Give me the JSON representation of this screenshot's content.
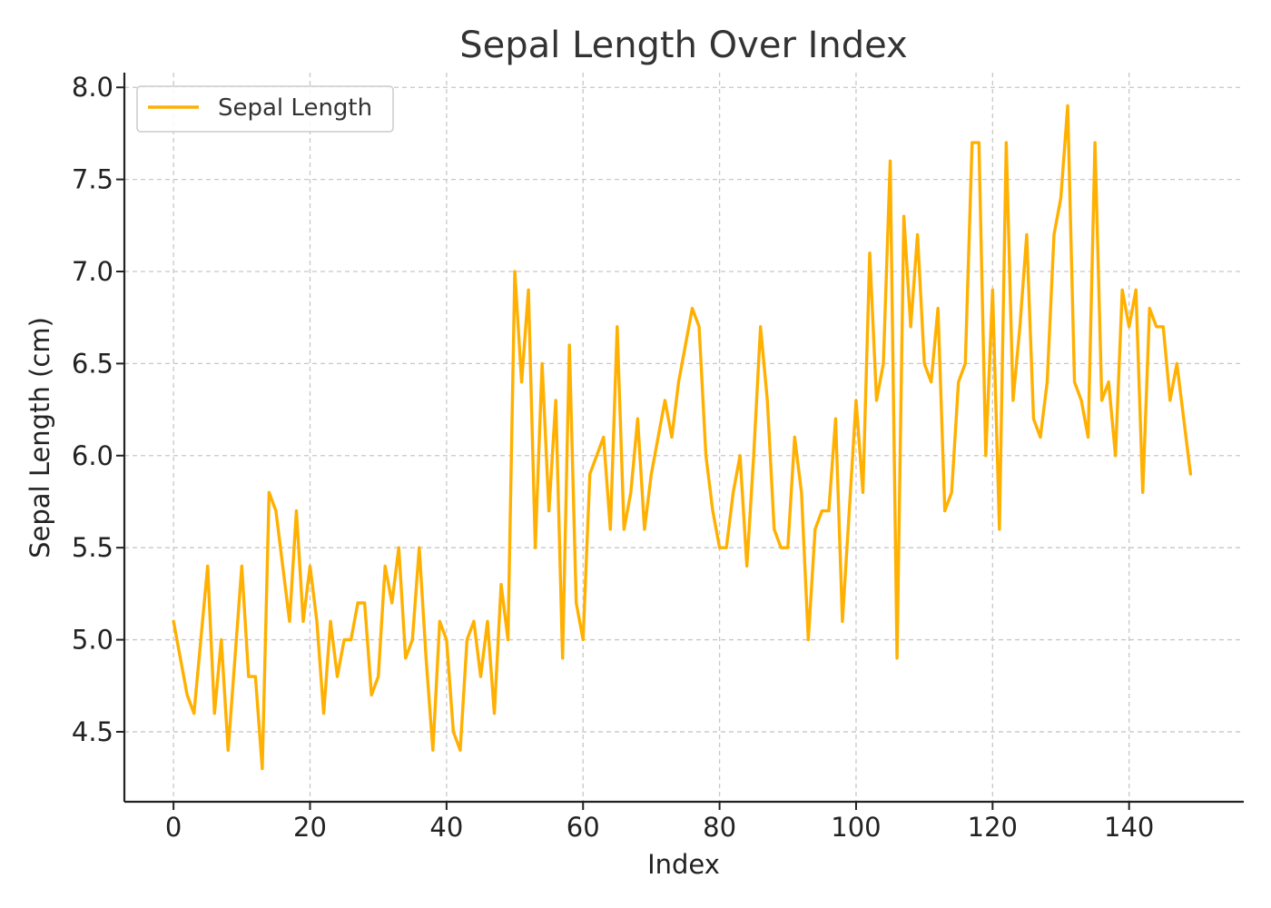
{
  "chart_data": {
    "type": "line",
    "title": "Sepal Length Over Index",
    "xlabel": "Index",
    "ylabel": "Sepal Length (cm)",
    "xlim": [
      -7.2,
      156.8
    ],
    "ylim": [
      4.12,
      8.08
    ],
    "xticks": [
      0,
      20,
      40,
      60,
      80,
      100,
      120,
      140
    ],
    "yticks": [
      4.5,
      5.0,
      5.5,
      6.0,
      6.5,
      7.0,
      7.5,
      8.0
    ],
    "grid": true,
    "legend_position": "top-left",
    "series": [
      {
        "name": "Sepal Length",
        "color": "#FFB000",
        "x_start": 0,
        "x_step": 1,
        "values": [
          5.1,
          4.9,
          4.7,
          4.6,
          5.0,
          5.4,
          4.6,
          5.0,
          4.4,
          4.9,
          5.4,
          4.8,
          4.8,
          4.3,
          5.8,
          5.7,
          5.4,
          5.1,
          5.7,
          5.1,
          5.4,
          5.1,
          4.6,
          5.1,
          4.8,
          5.0,
          5.0,
          5.2,
          5.2,
          4.7,
          4.8,
          5.4,
          5.2,
          5.5,
          4.9,
          5.0,
          5.5,
          4.9,
          4.4,
          5.1,
          5.0,
          4.5,
          4.4,
          5.0,
          5.1,
          4.8,
          5.1,
          4.6,
          5.3,
          5.0,
          7.0,
          6.4,
          6.9,
          5.5,
          6.5,
          5.7,
          6.3,
          4.9,
          6.6,
          5.2,
          5.0,
          5.9,
          6.0,
          6.1,
          5.6,
          6.7,
          5.6,
          5.8,
          6.2,
          5.6,
          5.9,
          6.1,
          6.3,
          6.1,
          6.4,
          6.6,
          6.8,
          6.7,
          6.0,
          5.7,
          5.5,
          5.5,
          5.8,
          6.0,
          5.4,
          6.0,
          6.7,
          6.3,
          5.6,
          5.5,
          5.5,
          6.1,
          5.8,
          5.0,
          5.6,
          5.7,
          5.7,
          6.2,
          5.1,
          5.7,
          6.3,
          5.8,
          7.1,
          6.3,
          6.5,
          7.6,
          4.9,
          7.3,
          6.7,
          7.2,
          6.5,
          6.4,
          6.8,
          5.7,
          5.8,
          6.4,
          6.5,
          7.7,
          7.7,
          6.0,
          6.9,
          5.6,
          7.7,
          6.3,
          6.7,
          7.2,
          6.2,
          6.1,
          6.4,
          7.2,
          7.4,
          7.9,
          6.4,
          6.3,
          6.1,
          7.7,
          6.3,
          6.4,
          6.0,
          6.9,
          6.7,
          6.9,
          5.8,
          6.8,
          6.7,
          6.7,
          6.3,
          6.5,
          6.2,
          5.9
        ]
      }
    ]
  }
}
